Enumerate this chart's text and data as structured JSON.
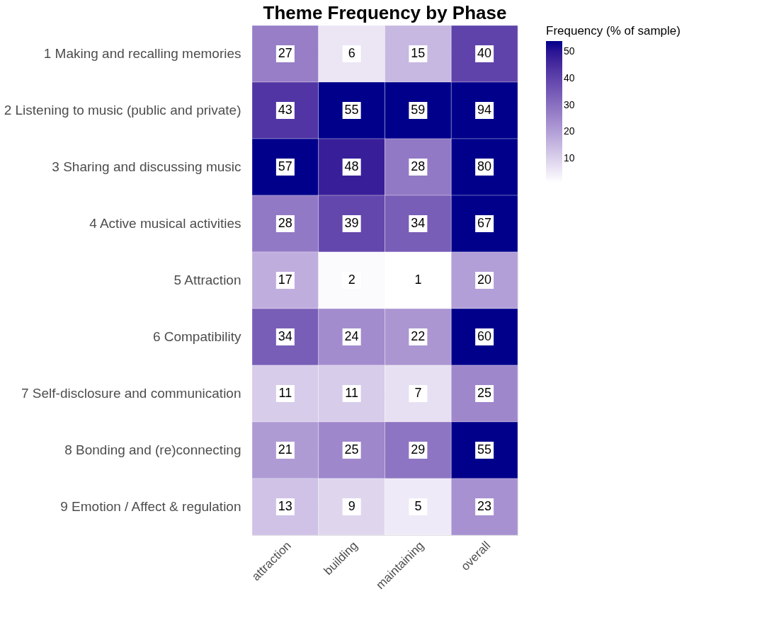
{
  "chart_data": {
    "type": "heatmap",
    "title": "Theme Frequency by Phase",
    "clabel": "Frequency (% of sample)",
    "categories": [
      "attraction",
      "building",
      "maintaining",
      "overall"
    ],
    "y_categories": [
      "1 Making and recalling memories",
      "2 Listening to music (public and private)",
      "3 Sharing and discussing music",
      "4 Active musical activities",
      "5 Attraction",
      "6 Compatibility",
      "7 Self-disclosure and communication",
      "8 Bonding and (re)connecting",
      "9 Emotion / Affect & regulation"
    ],
    "cells": [
      [
        27,
        6,
        15,
        40
      ],
      [
        43,
        55,
        59,
        94
      ],
      [
        57,
        48,
        28,
        80
      ],
      [
        28,
        39,
        34,
        67
      ],
      [
        17,
        2,
        1,
        20
      ],
      [
        34,
        24,
        22,
        60
      ],
      [
        11,
        11,
        7,
        25
      ],
      [
        21,
        25,
        29,
        55
      ],
      [
        13,
        9,
        5,
        23
      ]
    ],
    "clim": [
      1,
      54
    ],
    "cticks": [
      10,
      20,
      30,
      40,
      50
    ],
    "colors": [
      "#ffffff",
      "#00008b"
    ],
    "data_labels": true,
    "grid": true
  }
}
